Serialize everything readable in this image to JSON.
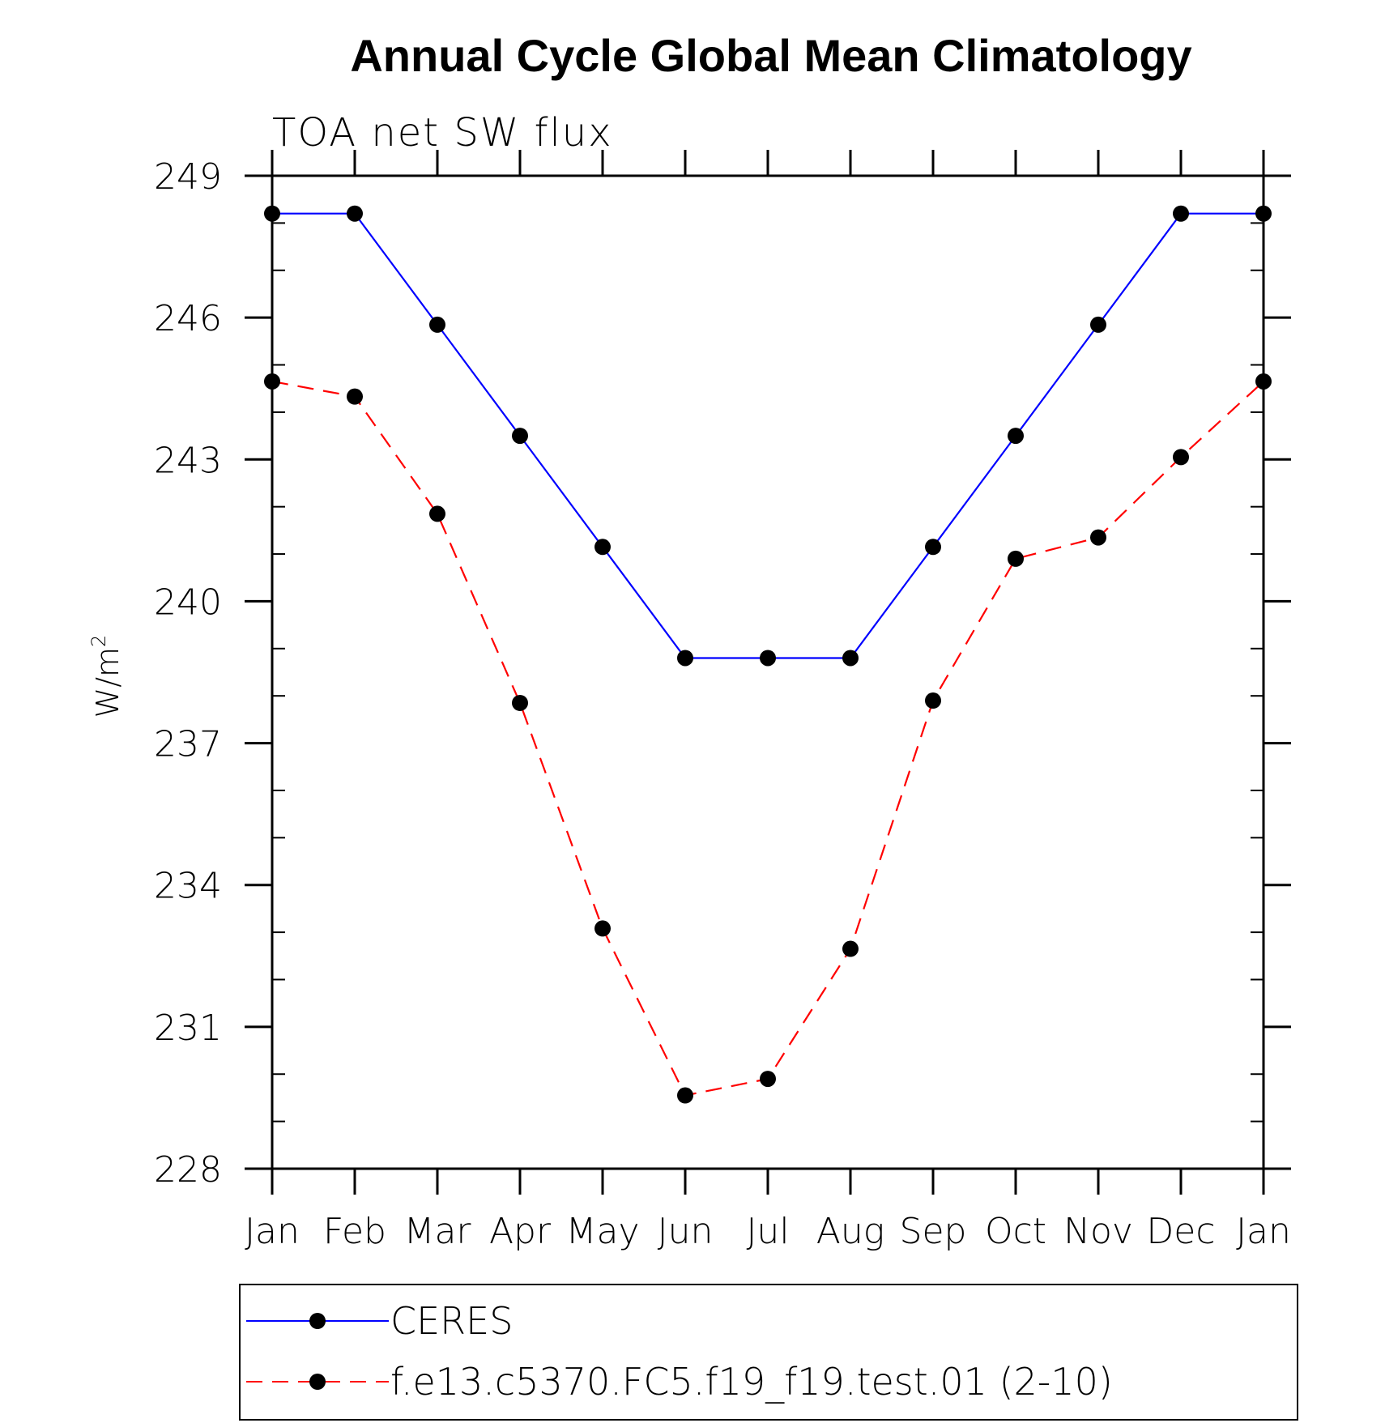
{
  "chart_data": {
    "type": "line",
    "title": "Annual Cycle Global Mean Climatology",
    "subtitle": "TOA net SW flux",
    "ylabel": "W/m",
    "ylabel_superscript": "2",
    "xlabel": "",
    "categories": [
      "Jan",
      "Feb",
      "Mar",
      "Apr",
      "May",
      "Jun",
      "Jul",
      "Aug",
      "Sep",
      "Oct",
      "Nov",
      "Dec",
      "Jan"
    ],
    "ylim": [
      228,
      249
    ],
    "yticks": [
      228,
      231,
      234,
      237,
      240,
      243,
      246,
      249
    ],
    "yminor_step": 1,
    "grid": false,
    "legend_position": "bottom",
    "series": [
      {
        "name": "CERES",
        "color": "#0000ff",
        "style": "solid",
        "marker": "filled-circle",
        "values": [
          248.2,
          248.2,
          245.85,
          243.5,
          241.15,
          238.8,
          238.8,
          238.8,
          241.15,
          243.5,
          245.85,
          248.2,
          248.2
        ]
      },
      {
        "name": "f.e13.c5370.FC5.f19_f19.test.01 (2-10)",
        "color": "#ff0000",
        "style": "dashed",
        "marker": "filled-circle",
        "values": [
          244.65,
          244.33,
          241.85,
          237.85,
          233.08,
          229.55,
          229.9,
          232.65,
          237.9,
          240.9,
          241.35,
          243.05,
          244.65
        ]
      }
    ]
  }
}
